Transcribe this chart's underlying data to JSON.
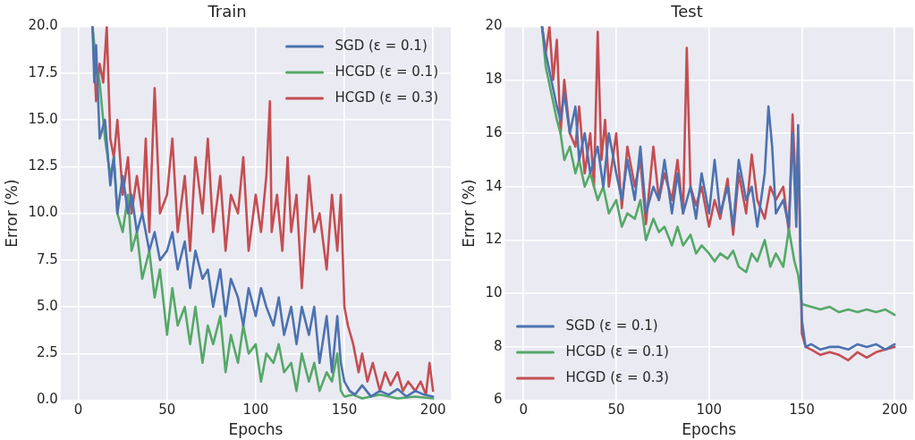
{
  "chart_data": [
    {
      "type": "line",
      "title": "Train",
      "xlabel": "Epochs",
      "ylabel": "Error (%)",
      "xlim": [
        -10,
        210
      ],
      "xticks": [
        0,
        50,
        100,
        150,
        200
      ],
      "ylim": [
        0,
        20
      ],
      "yticks": [
        {
          "value": 0,
          "label": "0.0"
        },
        {
          "value": 2.5,
          "label": "2.5"
        },
        {
          "value": 5,
          "label": "5.0"
        },
        {
          "value": 7.5,
          "label": "7.5"
        },
        {
          "value": 10,
          "label": "10.0"
        },
        {
          "value": 12.5,
          "label": "12.5"
        },
        {
          "value": 15,
          "label": "15.0"
        },
        {
          "value": 17.5,
          "label": "17.5"
        },
        {
          "value": 20,
          "label": "20.0"
        }
      ],
      "grid": true,
      "legend": "top right",
      "marker": "none",
      "line_style": "solid",
      "series": [
        {
          "name": "SGD (ε = 0.1)",
          "color": "#4c72b0",
          "x": [
            8,
            9,
            10,
            12,
            15,
            18,
            20,
            22,
            25,
            28,
            30,
            33,
            36,
            40,
            43,
            46,
            50,
            53,
            56,
            60,
            63,
            66,
            70,
            73,
            76,
            80,
            83,
            86,
            90,
            93,
            96,
            100,
            103,
            106,
            110,
            113,
            116,
            120,
            123,
            126,
            130,
            133,
            136,
            140,
            143,
            146,
            148,
            150,
            153,
            156,
            160,
            165,
            170,
            175,
            180,
            185,
            190,
            195,
            200
          ],
          "values": [
            20,
            17,
            19,
            14,
            15,
            11.5,
            13,
            10,
            12,
            10,
            11,
            9,
            10,
            8,
            9,
            7.5,
            8,
            9,
            7,
            8.5,
            6,
            8,
            6.5,
            7,
            5,
            7,
            4.5,
            6.5,
            5.5,
            4,
            6,
            4.5,
            6,
            5,
            4,
            5.5,
            3.5,
            5,
            3,
            5,
            3.5,
            5,
            2,
            4.5,
            1.5,
            4.5,
            2,
            1,
            0.5,
            0.3,
            0.8,
            0.2,
            0.5,
            0.3,
            0.6,
            0.2,
            0.5,
            0.3,
            0.2
          ]
        },
        {
          "name": "HCGD (ε = 0.1)",
          "color": "#55a868",
          "x": [
            8,
            10,
            12,
            15,
            18,
            20,
            22,
            25,
            28,
            30,
            33,
            36,
            40,
            43,
            46,
            50,
            53,
            56,
            60,
            63,
            66,
            70,
            73,
            76,
            80,
            83,
            86,
            90,
            93,
            96,
            100,
            103,
            106,
            110,
            113,
            116,
            120,
            123,
            126,
            130,
            133,
            136,
            140,
            143,
            146,
            148,
            150,
            155,
            160,
            170,
            180,
            190,
            200
          ],
          "values": [
            20,
            18,
            17,
            14,
            12,
            13,
            10,
            9,
            11,
            8,
            9,
            6.5,
            8,
            5.5,
            7,
            3.5,
            6,
            4,
            5,
            3,
            5,
            2,
            4,
            3,
            4.5,
            1.5,
            3.5,
            2,
            4,
            2.5,
            3,
            1,
            2.5,
            2,
            3,
            1.5,
            2,
            0.5,
            2.5,
            1,
            2,
            0.5,
            1.5,
            1,
            2.5,
            0.5,
            0.2,
            0.3,
            0.1,
            0.3,
            0.1,
            0.2,
            0.1
          ]
        },
        {
          "name": "HCGD (ε = 0.3)",
          "color": "#c44e52",
          "x": [
            8,
            10,
            12,
            14,
            16,
            18,
            20,
            22,
            25,
            28,
            30,
            33,
            36,
            38,
            40,
            43,
            46,
            50,
            53,
            56,
            60,
            63,
            66,
            70,
            73,
            76,
            80,
            83,
            86,
            90,
            93,
            96,
            100,
            103,
            106,
            108,
            109,
            112,
            115,
            118,
            120,
            123,
            126,
            130,
            133,
            136,
            140,
            143,
            146,
            148,
            150,
            152,
            155,
            158,
            160,
            163,
            166,
            170,
            173,
            176,
            180,
            183,
            186,
            190,
            193,
            196,
            198,
            200
          ],
          "values": [
            20,
            16,
            18,
            17,
            20,
            14,
            13,
            15,
            11,
            13,
            10,
            12,
            10,
            14,
            9,
            16.7,
            10,
            11,
            14,
            9,
            12,
            8,
            13,
            10,
            14,
            9,
            12,
            8,
            11,
            10,
            13,
            8,
            11,
            9,
            12,
            16,
            9,
            11,
            8,
            13,
            9,
            11,
            6,
            12,
            9,
            10,
            7,
            11,
            8,
            11,
            5,
            4,
            3,
            1.5,
            2.5,
            1,
            2,
            0.5,
            1.5,
            0.8,
            1.5,
            0.5,
            1,
            0.5,
            1,
            0.3,
            2,
            0.5
          ]
        }
      ]
    },
    {
      "type": "line",
      "title": "Test",
      "xlabel": "Epochs",
      "ylabel": "Error (%)",
      "xlim": [
        -10,
        210
      ],
      "xticks": [
        0,
        50,
        100,
        150,
        200
      ],
      "ylim": [
        6,
        20
      ],
      "yticks": [
        6,
        8,
        10,
        12,
        14,
        16,
        18,
        20
      ],
      "grid": true,
      "legend": "bottom left",
      "marker": "none",
      "line_style": "solid",
      "series": [
        {
          "name": "SGD (ε = 0.1)",
          "color": "#4c72b0",
          "x": [
            10,
            12,
            15,
            18,
            20,
            22,
            25,
            28,
            30,
            33,
            36,
            40,
            43,
            46,
            50,
            53,
            56,
            60,
            63,
            66,
            70,
            73,
            76,
            80,
            83,
            86,
            90,
            93,
            96,
            100,
            103,
            106,
            110,
            113,
            116,
            120,
            123,
            126,
            130,
            132,
            134,
            136,
            140,
            143,
            145,
            147,
            148,
            150,
            152,
            155,
            160,
            165,
            170,
            175,
            180,
            185,
            190,
            195,
            200
          ],
          "values": [
            20,
            19,
            18,
            17,
            16.5,
            17.5,
            16,
            17,
            15,
            16,
            14.5,
            15.5,
            14,
            16,
            14.5,
            13.5,
            15,
            13.5,
            15.5,
            13,
            14,
            13.5,
            15,
            13,
            14.5,
            13,
            14,
            12.8,
            14.5,
            13,
            15,
            13,
            14,
            12.5,
            15,
            13.5,
            14,
            12.5,
            14.5,
            17,
            15.5,
            13,
            13.5,
            12.5,
            16,
            12.5,
            16.3,
            9,
            8,
            8.1,
            7.9,
            8,
            8,
            7.9,
            8.1,
            8,
            8.1,
            7.9,
            8.1
          ]
        },
        {
          "name": "HCGD (ε = 0.1)",
          "color": "#55a868",
          "x": [
            10,
            12,
            15,
            18,
            20,
            22,
            25,
            28,
            30,
            33,
            36,
            40,
            43,
            46,
            50,
            53,
            56,
            60,
            63,
            66,
            70,
            73,
            76,
            80,
            83,
            86,
            90,
            93,
            96,
            100,
            103,
            106,
            110,
            113,
            116,
            120,
            123,
            126,
            130,
            133,
            136,
            140,
            143,
            146,
            148,
            150,
            155,
            160,
            165,
            170,
            175,
            180,
            185,
            190,
            195,
            200
          ],
          "values": [
            20,
            18.5,
            17.5,
            16.5,
            16,
            15,
            15.5,
            14.5,
            15,
            14,
            14.5,
            13.5,
            14,
            13,
            13.5,
            12.5,
            13,
            12.8,
            13.5,
            12,
            12.8,
            12.3,
            12.5,
            11.8,
            12.5,
            11.8,
            12.2,
            11.5,
            11.8,
            11.5,
            11.2,
            11.5,
            11.3,
            11.6,
            11,
            10.8,
            11.5,
            11.2,
            12,
            11,
            11.5,
            11,
            12.4,
            11.2,
            10.7,
            9.6,
            9.5,
            9.4,
            9.5,
            9.3,
            9.4,
            9.3,
            9.4,
            9.3,
            9.4,
            9.2
          ]
        },
        {
          "name": "HCGD (ε = 0.3)",
          "color": "#c44e52",
          "x": [
            10,
            12,
            14,
            16,
            18,
            20,
            22,
            25,
            28,
            30,
            33,
            36,
            38,
            40,
            42,
            44,
            46,
            50,
            53,
            56,
            60,
            63,
            66,
            70,
            73,
            76,
            80,
            83,
            86,
            88,
            90,
            93,
            96,
            100,
            103,
            106,
            110,
            113,
            116,
            120,
            123,
            126,
            130,
            133,
            136,
            140,
            143,
            145,
            147,
            148,
            150,
            152,
            155,
            160,
            165,
            170,
            175,
            180,
            185,
            190,
            195,
            200
          ],
          "values": [
            20,
            19,
            20,
            18,
            19.5,
            16,
            18,
            16,
            15.5,
            17,
            14.5,
            16,
            14,
            19.8,
            15,
            16.5,
            14,
            16,
            13.2,
            15.5,
            14,
            15,
            12.6,
            15.5,
            13.5,
            14.5,
            13.5,
            15,
            13,
            19.2,
            14,
            13.3,
            14,
            12.5,
            13.5,
            12.8,
            14.3,
            12.2,
            14.5,
            13,
            15.2,
            13.5,
            12.8,
            14,
            13.5,
            14,
            12.3,
            16.7,
            13.5,
            15.8,
            8.5,
            8,
            7.9,
            7.7,
            7.8,
            7.7,
            7.5,
            7.8,
            7.6,
            7.8,
            7.9,
            8
          ]
        }
      ]
    }
  ]
}
